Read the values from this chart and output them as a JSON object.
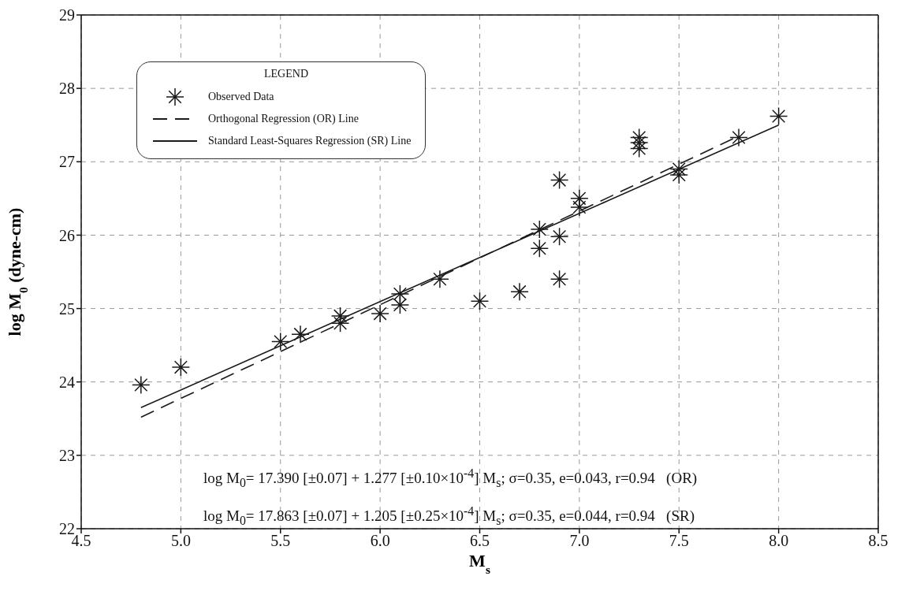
{
  "chart_data": {
    "type": "scatter",
    "xlabel": "M$_{s}$",
    "ylabel": "log M$_{0}$ (dyne-cm)",
    "legend_title": "LEGEND",
    "legend": "top left",
    "grid": true,
    "xlim": [
      4.5,
      8.5
    ],
    "ylim": [
      22,
      29
    ],
    "xticks": [
      {
        "value": 4.5,
        "label": "4.5"
      },
      {
        "value": 5,
        "label": "5.0"
      },
      {
        "value": 5.5,
        "label": "5.5"
      },
      {
        "value": 6,
        "label": "6.0"
      },
      {
        "value": 6.5,
        "label": "6.5"
      },
      {
        "value": 7,
        "label": "7.0"
      },
      {
        "value": 7.5,
        "label": "7.5"
      },
      {
        "value": 8,
        "label": "8.0"
      },
      {
        "value": 8.5,
        "label": "8.5"
      }
    ],
    "yticks": [
      22,
      23,
      24,
      25,
      26,
      27,
      28,
      29
    ],
    "series": [
      {
        "name": "Observed Data",
        "marker": "star",
        "color": "#1a1a1a",
        "x": [
          4.8,
          5.0,
          5.5,
          5.6,
          5.8,
          5.8,
          6.0,
          6.1,
          6.1,
          6.3,
          6.5,
          6.7,
          6.8,
          6.8,
          6.9,
          6.9,
          6.9,
          7.0,
          7.0,
          7.3,
          7.3,
          7.3,
          7.5,
          7.5,
          7.8,
          8.0
        ],
        "values": [
          23.96,
          24.2,
          24.55,
          24.65,
          24.8,
          24.9,
          24.93,
          25.05,
          25.2,
          25.4,
          25.1,
          25.23,
          25.82,
          26.08,
          25.4,
          25.98,
          26.75,
          26.38,
          26.5,
          27.18,
          27.26,
          27.33,
          26.82,
          26.9,
          27.33,
          27.62
        ]
      },
      {
        "name": "Orthogonal Regression (OR) Line",
        "type": "line",
        "line_style": "dashed",
        "color": "#1a1a1a",
        "x": [
          4.8,
          7.8
        ],
        "values": [
          23.52,
          27.35
        ]
      },
      {
        "name": "Standard Least-Squares Regression (SR) Line",
        "type": "line",
        "line_style": "solid",
        "color": "#1a1a1a",
        "x": [
          4.8,
          8.0
        ],
        "values": [
          23.65,
          27.5
        ]
      }
    ],
    "annotations": [
      "log M$_{0}$= 17.390 [±0.07] + 1.277 [±0.10×10$^{-4}$] M$_{s}$; σ=0.35, e=0.043, r=0.94   (OR)",
      "log M$_{0}$= 17.863 [±0.07] + 1.205 [±0.25×10$^{-4}$] M$_{s}$; σ=0.35, e=0.044, r=0.94   (SR)"
    ]
  }
}
